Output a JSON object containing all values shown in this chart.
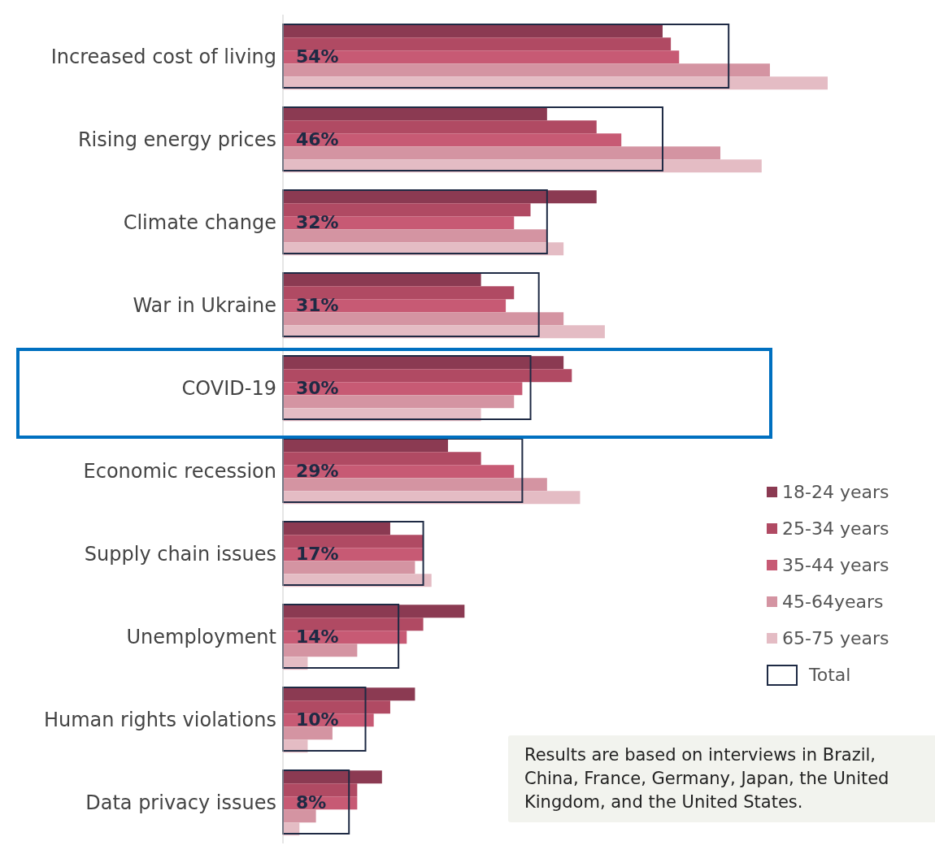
{
  "chart_data": {
    "type": "bar",
    "orientation": "horizontal",
    "categories": [
      "Increased cost of living",
      "Rising energy prices",
      "Climate change",
      "War in Ukraine",
      "COVID-19",
      "Economic recession",
      "Supply chain issues",
      "Unemployment",
      "Human rights violations",
      "Data privacy issues"
    ],
    "series": [
      {
        "name": "18-24 years",
        "color": "#8b3a52",
        "values": [
          46,
          32,
          38,
          24,
          34,
          20,
          13,
          22,
          16,
          12
        ]
      },
      {
        "name": "25-34 years",
        "color": "#b04a63",
        "values": [
          47,
          38,
          30,
          28,
          35,
          24,
          17,
          17,
          13,
          9
        ]
      },
      {
        "name": "35-44 years",
        "color": "#c75a74",
        "values": [
          48,
          41,
          28,
          27,
          29,
          28,
          17,
          15,
          11,
          9
        ]
      },
      {
        "name": "45-64years",
        "color": "#d494a2",
        "values": [
          59,
          53,
          32,
          34,
          28,
          32,
          16,
          9,
          6,
          4
        ]
      },
      {
        "name": "65-75 years",
        "color": "#e4bcc4",
        "values": [
          66,
          58,
          34,
          39,
          24,
          36,
          18,
          3,
          3,
          2
        ]
      },
      {
        "name": "Total",
        "color": "#1e2a44",
        "values": [
          54,
          46,
          32,
          31,
          30,
          29,
          17,
          14,
          10,
          8
        ],
        "value_labels": [
          "54%",
          "46%",
          "32%",
          "31%",
          "30%",
          "29%",
          "17%",
          "14%",
          "10%",
          "8%"
        ]
      }
    ],
    "tick_labels": "y",
    "legend": "right",
    "annotations": [
      "Results are based on interviews in Brazil, China, France, Germany, Japan, the United Kingdom, and the United States."
    ]
  }
}
